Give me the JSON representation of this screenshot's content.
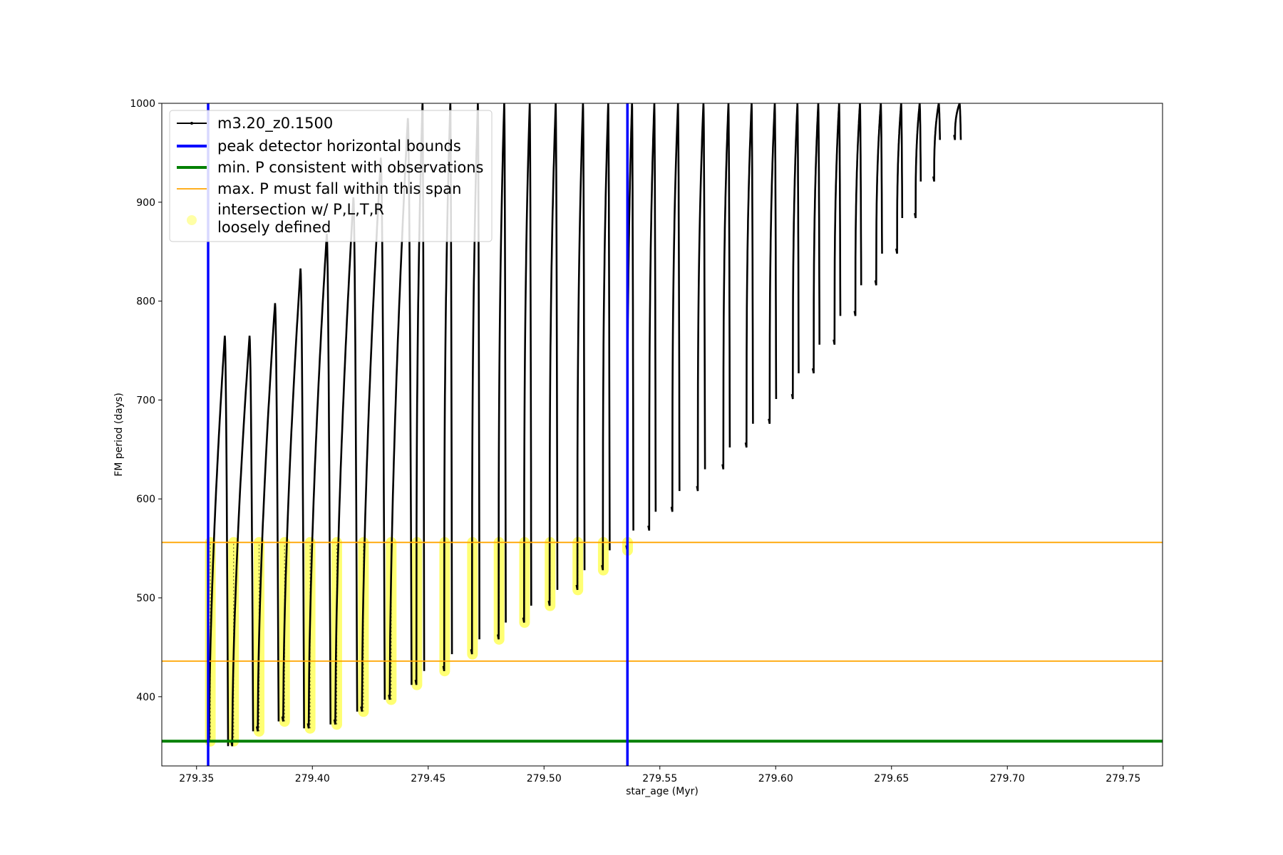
{
  "chart_data": {
    "type": "line",
    "xlabel": "star_age (Myr)",
    "ylabel": "FM period (days)",
    "xlim": [
      279.335,
      279.767
    ],
    "ylim": [
      330,
      1000
    ],
    "xticks": [
      279.35,
      279.4,
      279.45,
      279.5,
      279.55,
      279.6,
      279.65,
      279.7,
      279.75
    ],
    "xtick_labels": [
      "279.35",
      "279.40",
      "279.45",
      "279.50",
      "279.55",
      "279.60",
      "279.65",
      "279.70",
      "279.75"
    ],
    "yticks": [
      400,
      500,
      600,
      700,
      800,
      900,
      1000
    ],
    "ytick_labels": [
      "400",
      "500",
      "600",
      "700",
      "800",
      "900",
      "1000"
    ],
    "grid": false,
    "legend_placement": "upper-left",
    "legend": [
      {
        "label": "m3.20_z0.1500",
        "kind": "line-marker",
        "color": "#000000"
      },
      {
        "label": "peak detector horizontal bounds",
        "kind": "line",
        "color": "#0000ff"
      },
      {
        "label": "min. P consistent with observations",
        "kind": "line",
        "color": "#008000"
      },
      {
        "label": "max. P must fall within this span",
        "kind": "line",
        "color": "#ffa500"
      },
      {
        "label": "intersection w/ P,L,T,R\nloosely defined",
        "kind": "marker",
        "color": "#ffff00"
      }
    ],
    "vertical_lines": [
      {
        "name": "peak detector horizontal bounds",
        "x": 279.355,
        "color": "#0000ff"
      },
      {
        "name": "peak detector horizontal bounds",
        "x": 279.536,
        "color": "#0000ff"
      }
    ],
    "horizontal_lines": [
      {
        "name": "min. P consistent with observations",
        "y": 355,
        "color": "#008000"
      },
      {
        "name": "max. P must fall within this span",
        "y": 436,
        "color": "#ffa500"
      },
      {
        "name": "max. P must fall within this span",
        "y": 556,
        "color": "#ffa500"
      }
    ],
    "series": [
      {
        "name": "m3.20_z0.1500",
        "color": "#000000",
        "cycles_start": [
          279.355,
          279.365,
          279.376,
          279.387,
          279.398,
          279.4095,
          279.421,
          279.433,
          279.4445,
          279.4565,
          279.4685,
          279.48,
          279.491,
          279.502,
          279.514,
          279.525,
          279.5355,
          279.545,
          279.555,
          279.566,
          279.577,
          279.587,
          279.597,
          279.607,
          279.616,
          279.625,
          279.634,
          279.643,
          279.652,
          279.66,
          279.668,
          279.677
        ],
        "cycles_min_period": [
          355,
          350,
          365,
          375,
          368,
          372,
          385,
          397,
          412,
          426,
          443,
          458,
          475,
          492,
          508,
          528,
          548,
          568,
          587,
          608,
          630,
          652,
          676,
          701,
          727,
          756,
          785,
          816,
          848,
          884,
          921,
          963
        ],
        "cycles_max_period": [
          765,
          765,
          798,
          833,
          868,
          905,
          945,
          985,
          1000,
          1000,
          1000,
          1000,
          1000,
          1000,
          1000,
          1000,
          1000,
          1000,
          1000,
          1000,
          1000,
          1000,
          1000,
          1000,
          1000,
          1000,
          1000,
          1000,
          1000,
          1000,
          1000,
          1000
        ]
      }
    ]
  }
}
